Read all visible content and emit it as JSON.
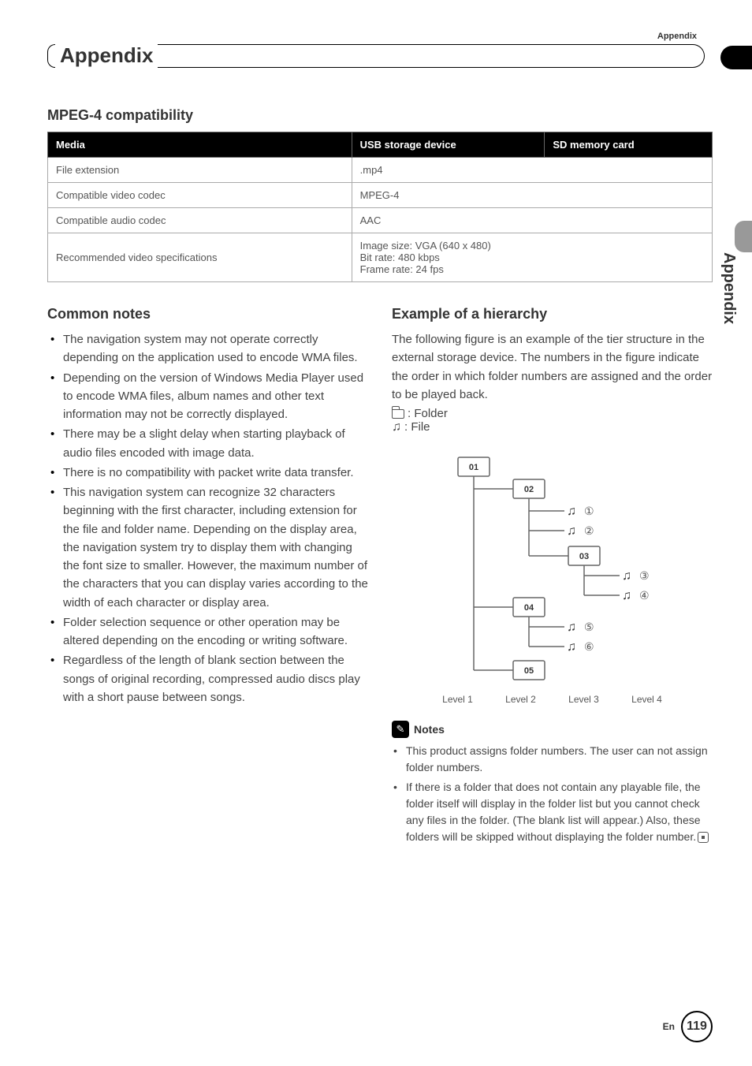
{
  "header": {
    "top_label": "Appendix",
    "title": "Appendix",
    "side_text": "Appendix"
  },
  "mpeg4": {
    "heading": "MPEG-4 compatibility",
    "columns": [
      "Media",
      "USB storage device",
      "SD memory card"
    ],
    "rows": [
      {
        "label": "File extension",
        "value": ".mp4"
      },
      {
        "label": "Compatible video codec",
        "value": "MPEG-4"
      },
      {
        "label": "Compatible audio codec",
        "value": "AAC"
      },
      {
        "label": "Recommended video specifications",
        "value": "Image size: VGA (640 x 480)\nBit rate: 480 kbps\nFrame rate: 24 fps"
      }
    ]
  },
  "common": {
    "heading": "Common notes",
    "items": [
      "The navigation system may not operate correctly depending on the application used to encode WMA files.",
      "Depending on the version of Windows Media Player used to encode WMA files, album names and other text information may not be correctly displayed.",
      "There may be a slight delay when starting playback of audio files encoded with image data.",
      "There is no compatibility with packet write data transfer.",
      "This navigation system can recognize 32 characters beginning with the first character, including extension for the file and folder name. Depending on the display area, the navigation system try to display them with changing the font size to smaller. However, the maximum number of the characters that you can display varies according to the width of each character or display area.",
      "Folder selection sequence or other operation may be altered depending on the encoding or writing software.",
      "Regardless of the length of blank section between the songs of original recording, compressed audio discs play with a short pause between songs."
    ]
  },
  "hierarchy": {
    "heading": "Example of a hierarchy",
    "intro": "The following figure is an example of the tier structure in the external storage device. The numbers in the figure indicate the order in which folder numbers are assigned and the order to be played back.",
    "legend": {
      "folder": ": Folder",
      "file": ": File"
    },
    "diagram": {
      "folders": [
        "01",
        "02",
        "03",
        "04",
        "05"
      ],
      "file_labels": [
        "①",
        "②",
        "③",
        "④",
        "⑤",
        "⑥"
      ],
      "levels": [
        "Level 1",
        "Level 2",
        "Level 3",
        "Level 4"
      ],
      "colors": {
        "box_border": "#666666",
        "line": "#666666",
        "text": "#555555"
      }
    }
  },
  "notes": {
    "heading": "Notes",
    "items": [
      "This product assigns folder numbers. The user can not assign folder numbers.",
      "If there is a folder that does not contain any playable file, the folder itself will display in the folder list but you cannot check any files in the folder. (The blank list will appear.) Also, these folders will be skipped without displaying the folder number."
    ]
  },
  "footer": {
    "lang": "En",
    "page": "119"
  },
  "style": {
    "page_bg": "#ffffff",
    "text_color": "#444444",
    "heading_color": "#000000",
    "table_header_bg": "#000000",
    "table_header_fg": "#ffffff",
    "table_border": "#aaaaaa",
    "side_tab_bg": "#999999",
    "body_font_size": 15,
    "heading_font_size": 18,
    "title_font_size": 26
  }
}
